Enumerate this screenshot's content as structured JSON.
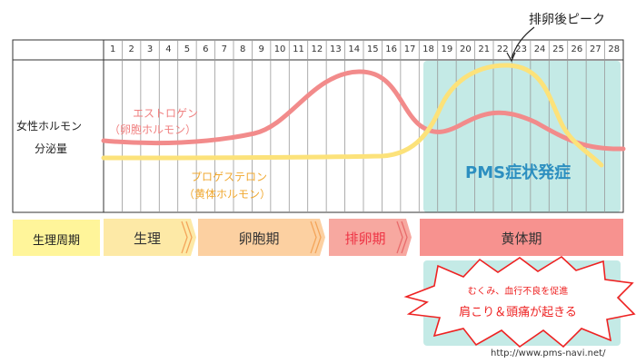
{
  "days": [
    "1",
    "2",
    "3",
    "4",
    "5",
    "6",
    "7",
    "8",
    "9",
    "10",
    "11",
    "12",
    "13",
    "14",
    "15",
    "16",
    "17",
    "18",
    "19",
    "20",
    "21",
    "22",
    "23",
    "24",
    "25",
    "26",
    "27",
    "28"
  ],
  "y_axis_label_line1": "女性ホルモン",
  "y_axis_label_line2": "分泌量",
  "estrogen_label_line1": "エストロゲン",
  "estrogen_label_line2": "（卵胞ホルモン）",
  "progesterone_label_line1": "プロゲステロン",
  "progesterone_label_line2": "（黄体ホルモン）",
  "peak_label": "排卵後ピーク",
  "pms_label": "PMS症状発症",
  "cycle_row_label": "生理周期",
  "phases": {
    "menstruation": "生理",
    "follicular": "卵胞期",
    "ovulation": "排卵期",
    "luteal": "黄体期"
  },
  "burst_line1": "むくみ、血行不良を促進",
  "burst_line2": "肩こり＆頭痛が起きる",
  "source_url": "http://www.pms-navi.net/",
  "colors": {
    "estrogen": "#f28b8b",
    "progesterone": "#fce27a",
    "pms_zone": "#c4eae6",
    "menstruation": "#fde9a6",
    "follicular": "#fcd0a1",
    "ovulation": "#f7a8a0",
    "luteal": "#f7928f",
    "cycle_label_bg": "#fff59a"
  }
}
